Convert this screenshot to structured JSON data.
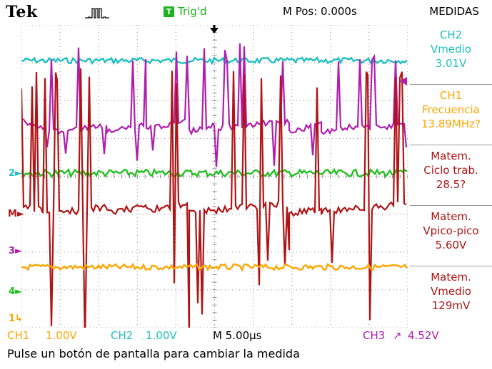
{
  "header": {
    "brand": "Tek",
    "acquisition_icon": "pulse-waveform-icon",
    "trigger_status": "Trig'd",
    "trigger_icon_letter": "T",
    "horizontal_position": "M Pos: 0.000s",
    "menu_title": "MEDIDAS"
  },
  "channels": {
    "ch1": {
      "color": "#ffa500",
      "marker": "1"
    },
    "ch2": {
      "color": "#1fbfbf",
      "marker": "2"
    },
    "ch3": {
      "color": "#b01eb0",
      "marker": "3"
    },
    "ch4": {
      "color": "#22c022",
      "marker": "4"
    },
    "math": {
      "color": "#b01414",
      "marker": "M"
    }
  },
  "measurements": [
    {
      "source": "CH2",
      "type": "Vmedio",
      "value": "3.01V",
      "color": "#1fbfbf"
    },
    {
      "source": "CH1",
      "type": "Frecuencia",
      "value": "13.89MHz?",
      "color": "#ffa500"
    },
    {
      "source": "Matem.",
      "type": "Ciclo trab.",
      "value": "28.5?",
      "color": "#b01414"
    },
    {
      "source": "Matem.",
      "type": "Vpico-pico",
      "value": "5.60V",
      "color": "#b01414"
    },
    {
      "source": "Matem.",
      "type": "Vmedio",
      "value": "129mV",
      "color": "#b01414"
    }
  ],
  "footer": {
    "ch1_label": "CH1",
    "ch1_scale": "1.00V",
    "ch2_label": "CH2",
    "ch2_scale": "1.00V",
    "timebase": "M 5.00µs",
    "trigger_source": "CH3",
    "trigger_slope_icon": "rising-edge-icon",
    "trigger_level": "4.52V"
  },
  "message": "Pulse un botón de pantalla para cambiar la medida"
}
